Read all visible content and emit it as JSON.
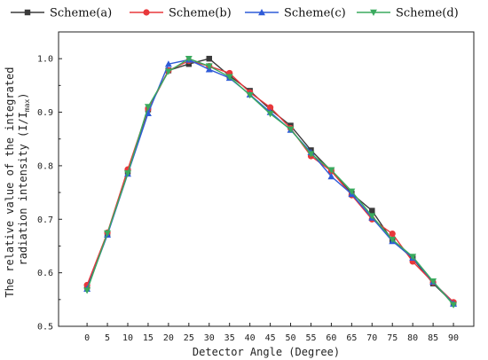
{
  "chart_data": {
    "type": "line",
    "xlabel": "Detector Angle (Degree)",
    "ylabel_line1": "The relative value of the integrated",
    "ylabel_line2": "radiation intensity (I/I",
    "ylabel_sub": "max",
    "ylabel_close": ")",
    "xlim": [
      -7,
      95
    ],
    "ylim": [
      0.5,
      1.05
    ],
    "x": [
      0,
      5,
      10,
      15,
      20,
      25,
      30,
      35,
      40,
      45,
      50,
      55,
      60,
      65,
      70,
      75,
      80,
      85,
      90
    ],
    "x_ticks": [
      "0",
      "5",
      "10",
      "15",
      "20",
      "25",
      "30",
      "35",
      "40",
      "45",
      "50",
      "55",
      "60",
      "65",
      "70",
      "75",
      "80",
      "85",
      "90"
    ],
    "y_ticks": [
      "0.5",
      "0.6",
      "0.7",
      "0.8",
      "0.9",
      "1.0"
    ],
    "legend_position": "top",
    "series": [
      {
        "name": "Scheme(a)",
        "color": "#3a3a3a",
        "marker": "square",
        "values": [
          0.574,
          0.673,
          0.789,
          0.905,
          0.978,
          0.99,
          1.0,
          0.968,
          0.94,
          0.905,
          0.875,
          0.829,
          0.79,
          0.748,
          0.716,
          0.66,
          0.627,
          0.58,
          0.543
        ]
      },
      {
        "name": "Scheme(b)",
        "color": "#e8383b",
        "marker": "circle",
        "values": [
          0.577,
          0.675,
          0.793,
          0.906,
          0.978,
          0.996,
          0.986,
          0.973,
          0.937,
          0.909,
          0.87,
          0.818,
          0.79,
          0.745,
          0.7,
          0.673,
          0.621,
          0.582,
          0.545
        ]
      },
      {
        "name": "Scheme(c)",
        "color": "#2f5bd8",
        "marker": "triangle-up",
        "values": [
          0.57,
          0.671,
          0.785,
          0.898,
          0.99,
          0.998,
          0.98,
          0.964,
          0.933,
          0.9,
          0.867,
          0.825,
          0.78,
          0.747,
          0.703,
          0.659,
          0.628,
          0.583,
          0.542
        ]
      },
      {
        "name": "Scheme(d)",
        "color": "#3aaa5e",
        "marker": "triangle-down",
        "values": [
          0.567,
          0.674,
          0.786,
          0.91,
          0.976,
          1.0,
          0.986,
          0.966,
          0.932,
          0.897,
          0.868,
          0.822,
          0.792,
          0.752,
          0.706,
          0.662,
          0.63,
          0.584,
          0.54
        ]
      }
    ]
  }
}
